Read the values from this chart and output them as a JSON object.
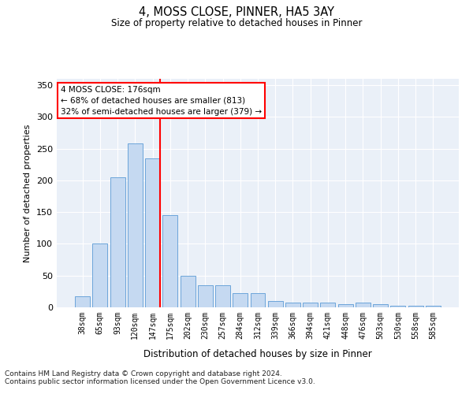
{
  "title1": "4, MOSS CLOSE, PINNER, HA5 3AY",
  "title2": "Size of property relative to detached houses in Pinner",
  "xlabel": "Distribution of detached houses by size in Pinner",
  "ylabel": "Number of detached properties",
  "categories": [
    "38sqm",
    "65sqm",
    "93sqm",
    "120sqm",
    "147sqm",
    "175sqm",
    "202sqm",
    "230sqm",
    "257sqm",
    "284sqm",
    "312sqm",
    "339sqm",
    "366sqm",
    "394sqm",
    "421sqm",
    "448sqm",
    "476sqm",
    "503sqm",
    "530sqm",
    "558sqm",
    "585sqm"
  ],
  "values": [
    18,
    100,
    205,
    258,
    235,
    145,
    50,
    35,
    35,
    22,
    22,
    10,
    8,
    8,
    8,
    5,
    8,
    5,
    2,
    2,
    2
  ],
  "bar_color": "#c5d9f1",
  "bar_edge_color": "#5b9bd5",
  "red_line_x": 4.425,
  "annotation_text": "4 MOSS CLOSE: 176sqm\n← 68% of detached houses are smaller (813)\n32% of semi-detached houses are larger (379) →",
  "ylim": [
    0,
    360
  ],
  "yticks": [
    0,
    50,
    100,
    150,
    200,
    250,
    300,
    350
  ],
  "bg_color": "#eaf0f8",
  "grid_color": "white",
  "footer1": "Contains HM Land Registry data © Crown copyright and database right 2024.",
  "footer2": "Contains public sector information licensed under the Open Government Licence v3.0."
}
